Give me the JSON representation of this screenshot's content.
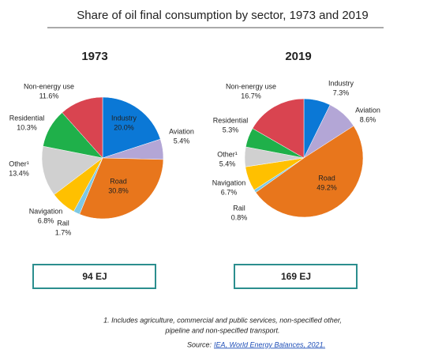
{
  "title": "Share of oil final consumption by sector, 1973 and 2019",
  "chart_data": [
    {
      "type": "pie",
      "title": "1973",
      "total": "94 EJ",
      "categories": [
        "Industry",
        "Aviation",
        "Road",
        "Rail",
        "Navigation",
        "Other¹",
        "Residential",
        "Non-energy use"
      ],
      "values": [
        20.0,
        5.4,
        30.8,
        1.7,
        6.8,
        13.4,
        10.3,
        11.6
      ],
      "value_labels": [
        "20.0%",
        "5.4%",
        "30.8%",
        "1.7%",
        "6.8%",
        "13.4%",
        "10.3%",
        "11.6%"
      ],
      "colors": [
        "#0b78d6",
        "#b3a6d6",
        "#e8761c",
        "#7ec8e3",
        "#ffc000",
        "#d0d0d0",
        "#1fb04a",
        "#d94450"
      ]
    },
    {
      "type": "pie",
      "title": "2019",
      "total": "169 EJ",
      "categories": [
        "Industry",
        "Aviation",
        "Road",
        "Rail",
        "Navigation",
        "Other¹",
        "Residential",
        "Non-energy use"
      ],
      "values": [
        7.3,
        8.6,
        49.2,
        0.8,
        6.7,
        5.4,
        5.3,
        16.7
      ],
      "value_labels": [
        "7.3%",
        "8.6%",
        "49.2%",
        "0.8%",
        "6.7%",
        "5.4%",
        "5.3%",
        "16.7%"
      ],
      "colors": [
        "#0b78d6",
        "#b3a6d6",
        "#e8761c",
        "#7ec8e3",
        "#ffc000",
        "#d0d0d0",
        "#1fb04a",
        "#d94450"
      ]
    }
  ],
  "footnote": [
    "1. Includes agriculture, commercial and public services, non-specified other,",
    "pipeline and non-specified transport."
  ],
  "source": "Source:",
  "source_link": "IEA, World Energy Balances, 2021."
}
